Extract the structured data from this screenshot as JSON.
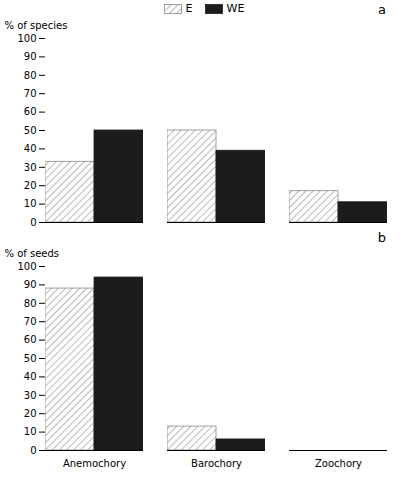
{
  "chart_data": [
    {
      "type": "bar",
      "title": "a",
      "ylabel": "% of species",
      "categories": [
        "Anemochory",
        "Barochory",
        "Zoochory"
      ],
      "series": [
        {
          "name": "E",
          "color": "#888888",
          "values": [
            33,
            50,
            17
          ]
        },
        {
          "name": "WE",
          "color": "#1c1c1c",
          "values": [
            50,
            39,
            11
          ]
        }
      ],
      "ylim": [
        0,
        100
      ],
      "yticks": [
        0,
        10,
        20,
        30,
        40,
        50,
        60,
        70,
        80,
        90,
        100
      ],
      "grid": false,
      "legend": "top",
      "tick_labels": "y"
    },
    {
      "type": "bar",
      "title": "b",
      "ylabel": "% of seeds",
      "categories": [
        "Anemochory",
        "Barochory",
        "Zoochory"
      ],
      "series": [
        {
          "name": "E",
          "color": "#888888",
          "values": [
            88,
            13,
            0
          ]
        },
        {
          "name": "WE",
          "color": "#1c1c1c",
          "values": [
            94,
            6,
            0
          ]
        }
      ],
      "ylim": [
        0,
        100
      ],
      "yticks": [
        0,
        10,
        20,
        30,
        40,
        50,
        60,
        70,
        80,
        90,
        100
      ],
      "grid": false,
      "legend": false
    }
  ]
}
